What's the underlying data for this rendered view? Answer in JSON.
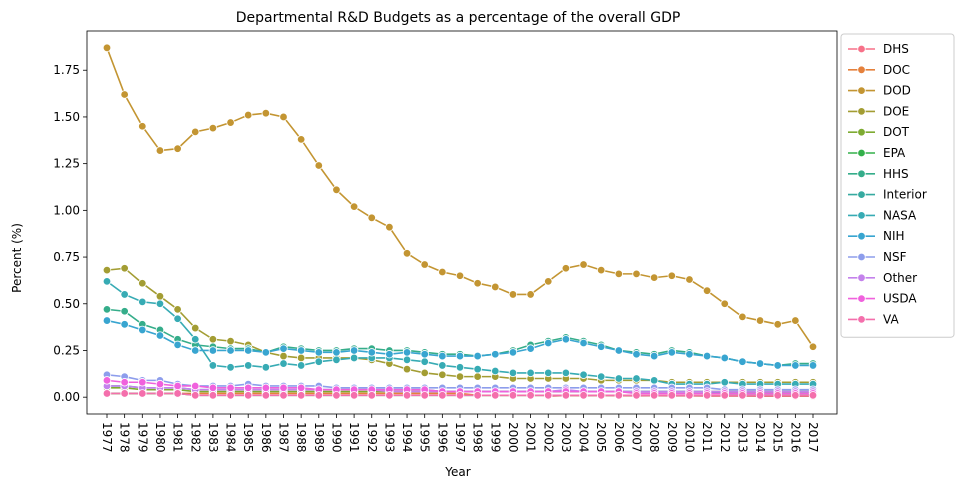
{
  "chart_data": {
    "type": "line",
    "title": "Departmental R&D Budgets as a percentage of the overall GDP",
    "xlabel": "Year",
    "ylabel": "Percent (%)",
    "x": [
      "1977",
      "1978",
      "1979",
      "1980",
      "1981",
      "1982",
      "1983",
      "1984",
      "1985",
      "1986",
      "1987",
      "1988",
      "1989",
      "1990",
      "1991",
      "1992",
      "1993",
      "1994",
      "1995",
      "1996",
      "1997",
      "1998",
      "1999",
      "2000",
      "2001",
      "2002",
      "2003",
      "2004",
      "2005",
      "2006",
      "2007",
      "2008",
      "2009",
      "2010",
      "2011",
      "2012",
      "2013",
      "2014",
      "2015",
      "2016",
      "2017"
    ],
    "ylim": [
      -0.09,
      1.96
    ],
    "yticks": [
      0.0,
      0.25,
      0.5,
      0.75,
      1.0,
      1.25,
      1.5,
      1.75
    ],
    "ytick_labels": [
      "0.00",
      "0.25",
      "0.50",
      "0.75",
      "1.00",
      "1.25",
      "1.50",
      "1.75"
    ],
    "grid": false,
    "legend_position": "outside-right",
    "series": [
      {
        "name": "DHS",
        "color": "#f77189",
        "values": [
          null,
          null,
          null,
          null,
          null,
          null,
          null,
          null,
          null,
          null,
          null,
          null,
          null,
          null,
          null,
          null,
          null,
          null,
          null,
          null,
          null,
          null,
          null,
          null,
          null,
          0.005,
          0.009,
          0.008,
          0.009,
          0.008,
          0.007,
          0.008,
          0.007,
          0.007,
          0.006,
          0.006,
          0.006,
          0.005,
          0.005,
          0.005,
          0.005
        ]
      },
      {
        "name": "DOC",
        "color": "#e5813c",
        "values": [
          0.02,
          0.02,
          0.02,
          0.02,
          0.02,
          0.02,
          0.02,
          0.02,
          0.02,
          0.02,
          0.02,
          0.02,
          0.02,
          0.02,
          0.02,
          0.02,
          0.02,
          0.02,
          0.02,
          0.02,
          0.02,
          0.01,
          0.01,
          0.01,
          0.01,
          0.01,
          0.01,
          0.01,
          0.01,
          0.01,
          0.01,
          0.01,
          0.01,
          0.01,
          0.01,
          0.01,
          0.01,
          0.01,
          0.01,
          0.01,
          0.01
        ]
      },
      {
        "name": "DOD",
        "color": "#c39532",
        "values": [
          1.87,
          1.62,
          1.45,
          1.32,
          1.33,
          1.42,
          1.44,
          1.47,
          1.51,
          1.52,
          1.5,
          1.38,
          1.24,
          1.11,
          1.02,
          0.96,
          0.91,
          0.77,
          0.71,
          0.67,
          0.65,
          0.61,
          0.59,
          0.55,
          0.55,
          0.62,
          0.69,
          0.71,
          0.68,
          0.66,
          0.66,
          0.64,
          0.65,
          0.63,
          0.57,
          0.5,
          0.43,
          0.41,
          0.39,
          0.41,
          0.27
        ]
      },
      {
        "name": "DOE",
        "color": "#a39d33",
        "values": [
          0.68,
          0.69,
          0.61,
          0.54,
          0.47,
          0.37,
          0.31,
          0.3,
          0.28,
          0.24,
          0.22,
          0.21,
          0.21,
          0.21,
          0.21,
          0.2,
          0.18,
          0.15,
          0.13,
          0.12,
          0.11,
          0.11,
          0.11,
          0.1,
          0.1,
          0.1,
          0.1,
          0.1,
          0.09,
          0.09,
          0.09,
          0.09,
          0.08,
          0.08,
          0.08,
          0.08,
          0.08,
          0.08,
          0.08,
          0.08,
          0.08
        ]
      },
      {
        "name": "DOT",
        "color": "#7eab32",
        "values": [
          0.05,
          0.05,
          0.04,
          0.04,
          0.04,
          0.03,
          0.03,
          0.03,
          0.03,
          0.03,
          0.03,
          0.03,
          0.03,
          0.03,
          0.03,
          0.03,
          0.03,
          0.03,
          0.03,
          0.03,
          0.03,
          0.03,
          0.03,
          0.03,
          0.03,
          0.03,
          0.03,
          0.03,
          0.03,
          0.03,
          0.03,
          0.03,
          0.03,
          0.03,
          0.03,
          0.03,
          0.03,
          0.03,
          0.03,
          0.03,
          0.03
        ]
      },
      {
        "name": "EPA",
        "color": "#33b04a",
        "values": [
          0.02,
          0.02,
          0.02,
          0.02,
          0.02,
          0.01,
          0.01,
          0.01,
          0.01,
          0.01,
          0.01,
          0.01,
          0.01,
          0.01,
          0.01,
          0.01,
          0.01,
          0.01,
          0.01,
          0.01,
          0.01,
          0.01,
          0.01,
          0.01,
          0.01,
          0.01,
          0.01,
          0.01,
          0.01,
          0.01,
          0.01,
          0.01,
          0.01,
          0.01,
          0.01,
          0.01,
          0.01,
          0.01,
          0.01,
          0.01,
          0.01
        ]
      },
      {
        "name": "HHS",
        "color": "#35ad8a",
        "values": [
          0.47,
          0.46,
          0.39,
          0.36,
          0.31,
          0.28,
          0.27,
          0.26,
          0.26,
          0.24,
          0.27,
          0.26,
          0.25,
          0.25,
          0.26,
          0.26,
          0.25,
          0.25,
          0.24,
          0.23,
          0.23,
          0.22,
          0.23,
          0.25,
          0.28,
          0.3,
          0.32,
          0.3,
          0.28,
          0.25,
          0.24,
          0.23,
          0.25,
          0.24,
          0.22,
          0.21,
          0.19,
          0.18,
          0.17,
          0.18,
          0.18
        ]
      },
      {
        "name": "Interior",
        "color": "#36aaa0",
        "values": [
          0.06,
          0.06,
          0.05,
          0.05,
          0.05,
          0.04,
          0.04,
          0.04,
          0.04,
          0.04,
          0.04,
          0.04,
          0.04,
          0.04,
          0.04,
          0.04,
          0.04,
          0.04,
          0.04,
          0.03,
          0.03,
          0.03,
          0.03,
          0.03,
          0.03,
          0.03,
          0.03,
          0.03,
          0.03,
          0.03,
          0.03,
          0.03,
          0.03,
          0.03,
          0.03,
          0.02,
          0.02,
          0.02,
          0.02,
          0.02,
          0.02
        ]
      },
      {
        "name": "NASA",
        "color": "#37abb4",
        "values": [
          0.62,
          0.55,
          0.51,
          0.5,
          0.42,
          0.31,
          0.17,
          0.16,
          0.17,
          0.16,
          0.18,
          0.17,
          0.19,
          0.2,
          0.21,
          0.21,
          0.21,
          0.2,
          0.19,
          0.17,
          0.16,
          0.15,
          0.14,
          0.13,
          0.13,
          0.13,
          0.13,
          0.12,
          0.11,
          0.1,
          0.1,
          0.09,
          0.07,
          0.07,
          0.07,
          0.08,
          0.07,
          0.07,
          0.07,
          0.07,
          0.07
        ]
      },
      {
        "name": "NIH",
        "color": "#38a5d0",
        "values": [
          0.41,
          0.39,
          0.36,
          0.33,
          0.28,
          0.25,
          0.25,
          0.25,
          0.25,
          0.24,
          0.26,
          0.25,
          0.24,
          0.24,
          0.25,
          0.24,
          0.23,
          0.24,
          0.23,
          0.22,
          0.22,
          0.22,
          0.23,
          0.24,
          0.26,
          0.29,
          0.31,
          0.29,
          0.27,
          0.25,
          0.23,
          0.22,
          0.24,
          0.23,
          0.22,
          0.21,
          0.19,
          0.18,
          0.17,
          0.17,
          0.17
        ]
      },
      {
        "name": "NSF",
        "color": "#8d9dec",
        "values": [
          0.12,
          0.11,
          0.09,
          0.09,
          0.07,
          0.06,
          0.06,
          0.06,
          0.07,
          0.06,
          0.06,
          0.06,
          0.06,
          0.05,
          0.05,
          0.05,
          0.05,
          0.05,
          0.05,
          0.05,
          0.05,
          0.05,
          0.05,
          0.05,
          0.05,
          0.05,
          0.05,
          0.05,
          0.05,
          0.05,
          0.05,
          0.05,
          0.05,
          0.05,
          0.05,
          0.04,
          0.04,
          0.04,
          0.04,
          0.04,
          0.04
        ]
      },
      {
        "name": "Other",
        "color": "#c482ec",
        "values": [
          0.06,
          0.06,
          0.05,
          0.05,
          0.05,
          0.04,
          0.04,
          0.04,
          0.04,
          0.04,
          0.04,
          0.04,
          0.04,
          0.04,
          0.04,
          0.04,
          0.03,
          0.03,
          0.03,
          0.03,
          0.03,
          0.03,
          0.03,
          0.03,
          0.03,
          0.03,
          0.04,
          0.03,
          0.03,
          0.03,
          0.03,
          0.03,
          0.03,
          0.03,
          0.03,
          0.03,
          0.03,
          0.03,
          0.03,
          0.03,
          0.03
        ]
      },
      {
        "name": "USDA",
        "color": "#f061dd",
        "values": [
          0.09,
          0.08,
          0.08,
          0.07,
          0.06,
          0.06,
          0.05,
          0.05,
          0.05,
          0.05,
          0.05,
          0.05,
          0.04,
          0.04,
          0.04,
          0.04,
          0.04,
          0.04,
          0.04,
          0.03,
          0.03,
          0.03,
          0.03,
          0.03,
          0.03,
          0.03,
          0.03,
          0.03,
          0.03,
          0.03,
          0.02,
          0.02,
          0.02,
          0.02,
          0.02,
          0.02,
          0.02,
          0.02,
          0.02,
          0.02,
          0.02
        ]
      },
      {
        "name": "VA",
        "color": "#f46fac",
        "values": [
          0.02,
          0.02,
          0.02,
          0.02,
          0.02,
          0.01,
          0.01,
          0.01,
          0.01,
          0.01,
          0.01,
          0.01,
          0.01,
          0.01,
          0.01,
          0.01,
          0.01,
          0.01,
          0.01,
          0.01,
          0.01,
          0.01,
          0.01,
          0.01,
          0.01,
          0.01,
          0.01,
          0.01,
          0.01,
          0.01,
          0.01,
          0.01,
          0.01,
          0.01,
          0.01,
          0.01,
          0.01,
          0.01,
          0.01,
          0.01,
          0.01
        ]
      }
    ]
  }
}
